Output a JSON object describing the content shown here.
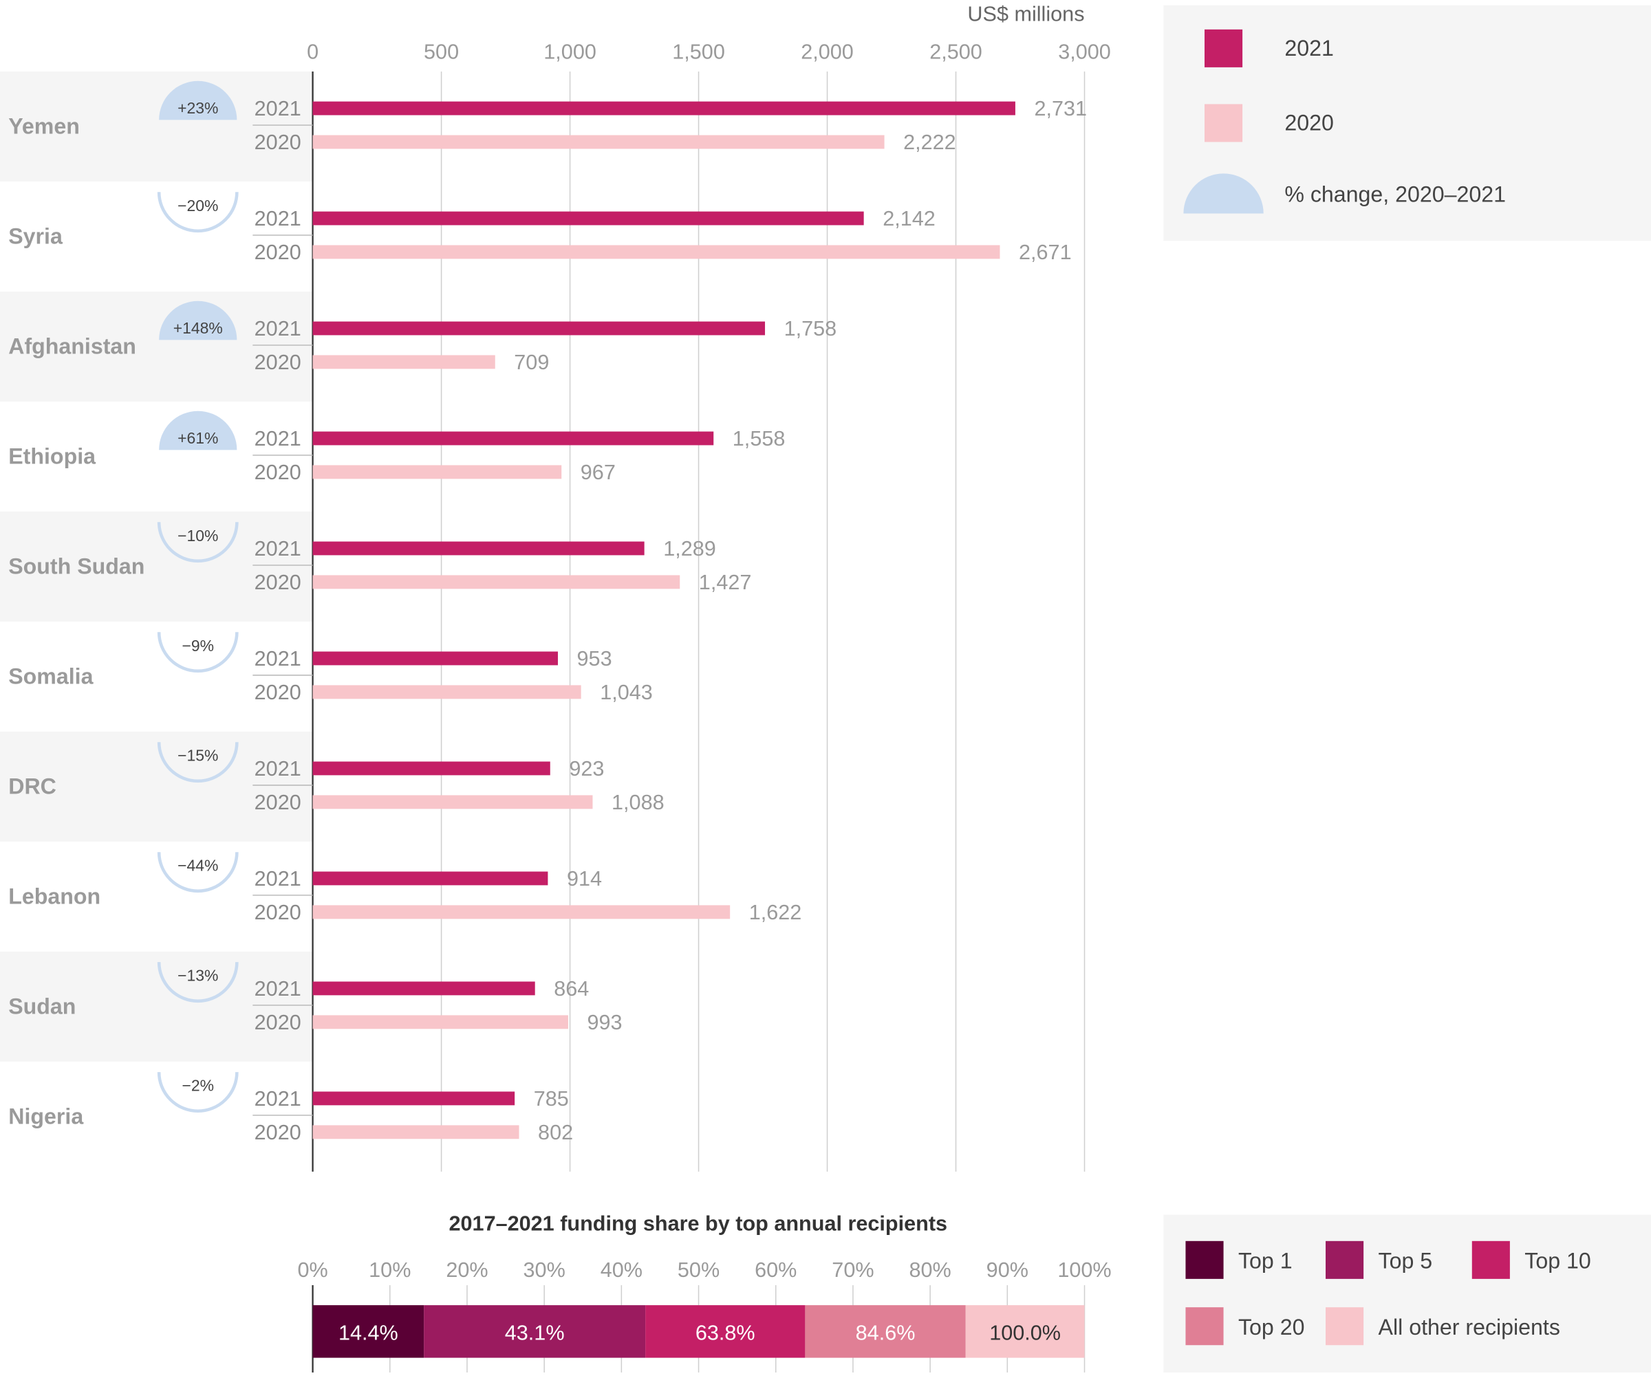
{
  "chart_data": [
    {
      "type": "bar",
      "orientation": "horizontal",
      "unit_label": "US$ millions",
      "xlim": [
        0,
        3000
      ],
      "x_ticks": [
        "0",
        "500",
        "1,000",
        "1,500",
        "2,000",
        "2,500",
        "3,000"
      ],
      "categories": [
        "Yemen",
        "Syria",
        "Afghanistan",
        "Ethiopia",
        "South Sudan",
        "Somalia",
        "DRC",
        "Lebanon",
        "Sudan",
        "Nigeria"
      ],
      "series": [
        {
          "name": "2021",
          "color": "#c41f66",
          "values": [
            2731,
            2142,
            1758,
            1558,
            1289,
            953,
            923,
            914,
            864,
            785
          ],
          "labels": [
            "2,731",
            "2,142",
            "1,758",
            "1,558",
            "1,289",
            "953",
            "923",
            "914",
            "864",
            "785"
          ]
        },
        {
          "name": "2020",
          "color": "#f8c5ca",
          "values": [
            2222,
            2671,
            709,
            967,
            1427,
            1043,
            1088,
            1622,
            993,
            802
          ],
          "labels": [
            "2,222",
            "2,671",
            "709",
            "967",
            "1,427",
            "1,043",
            "1,088",
            "1,622",
            "993",
            "802"
          ]
        }
      ],
      "pct_change": [
        "+23%",
        "−20%",
        "+148%",
        "+61%",
        "−10%",
        "−9%",
        "−15%",
        "−44%",
        "−13%",
        "−2%"
      ],
      "pct_change_values": [
        23,
        -20,
        148,
        61,
        -10,
        -9,
        -15,
        -44,
        -13,
        -2
      ],
      "legend": {
        "placement": "top-right",
        "items": [
          {
            "label": "2021",
            "color": "#c41f66",
            "shape": "square"
          },
          {
            "label": "2020",
            "color": "#f8c5ca",
            "shape": "square"
          },
          {
            "label": "% change, 2020–2021",
            "color": "#c9dbf0",
            "shape": "semicircle"
          }
        ]
      },
      "grid": true
    },
    {
      "type": "stacked-bar",
      "title": "2017–2021 funding share by top annual recipients",
      "xlim": [
        0,
        100
      ],
      "x_ticks": [
        "0%",
        "10%",
        "20%",
        "30%",
        "40%",
        "50%",
        "60%",
        "70%",
        "80%",
        "90%",
        "100%"
      ],
      "segments": [
        {
          "name": "Top 1",
          "cumulative": 14.4,
          "label": "14.4%",
          "color": "#5a0035"
        },
        {
          "name": "Top 5",
          "cumulative": 43.1,
          "label": "43.1%",
          "color": "#9b1b5f"
        },
        {
          "name": "Top 10",
          "cumulative": 63.8,
          "label": "63.8%",
          "color": "#c41f66"
        },
        {
          "name": "Top 20",
          "cumulative": 84.6,
          "label": "84.6%",
          "color": "#e07f95"
        },
        {
          "name": "All other recipients",
          "cumulative": 100.0,
          "label": "100.0%",
          "color": "#f8c5ca"
        }
      ],
      "legend": {
        "placement": "right"
      }
    }
  ]
}
